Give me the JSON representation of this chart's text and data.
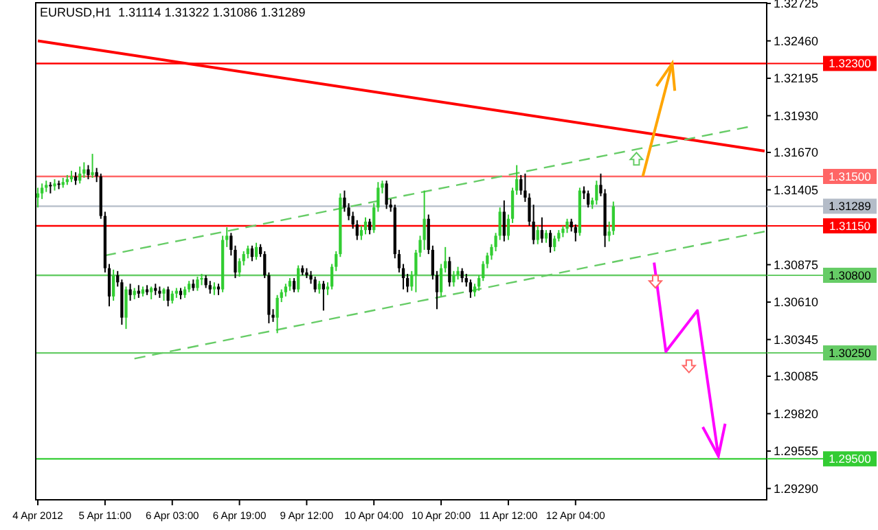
{
  "chart_data": {
    "type": "candlestick",
    "title": "EURUSD,H1  1.31114 1.31322 1.31086 1.31289",
    "ylim": [
      1.2921,
      1.3273
    ],
    "categories": [
      "4 Apr 2012",
      null,
      null,
      null,
      null,
      null,
      null,
      null,
      null,
      null,
      null,
      null,
      null,
      null,
      null,
      null,
      "5 Apr 11:00",
      null,
      null,
      null,
      null,
      null,
      null,
      null,
      null,
      null,
      null,
      null,
      null,
      null,
      null,
      null,
      "6 Apr 03:00",
      null,
      null,
      null,
      null,
      null,
      null,
      null,
      null,
      null,
      null,
      null,
      null,
      null,
      null,
      null,
      "6 Apr 19:00",
      null,
      null,
      null,
      null,
      null,
      null,
      null,
      null,
      null,
      null,
      null,
      null,
      null,
      null,
      null,
      "9 Apr 12:00",
      null,
      null,
      null,
      null,
      null,
      null,
      null,
      null,
      null,
      null,
      null,
      null,
      null,
      null,
      null,
      "10 Apr 04:00",
      null,
      null,
      null,
      null,
      null,
      null,
      null,
      null,
      null,
      null,
      null,
      null,
      null,
      null,
      null,
      "10 Apr 20:00",
      null,
      null,
      null,
      null,
      null,
      null,
      null,
      null,
      null,
      null,
      null,
      null,
      null,
      null,
      null,
      "11 Apr 12:00",
      null,
      null,
      null,
      null,
      null,
      null,
      null,
      null,
      null,
      null,
      null,
      null,
      null,
      null,
      null,
      "12 Apr 04:00",
      null,
      null,
      null,
      null,
      null,
      null,
      null,
      null,
      null,
      null,
      null,
      null,
      null,
      null,
      null,
      null,
      null,
      null,
      null,
      null,
      null,
      null,
      null,
      null,
      null,
      null,
      null,
      null,
      null,
      null,
      null,
      null,
      null,
      null,
      null,
      null,
      null,
      null,
      null,
      null,
      null,
      null,
      null,
      null,
      null
    ],
    "yticks": [
      {
        "value": 1.32725,
        "label": "1.32725"
      },
      {
        "value": 1.3246,
        "label": "1.32460"
      },
      {
        "value": 1.32195,
        "label": "1.32195"
      },
      {
        "value": 1.3193,
        "label": "1.31930"
      },
      {
        "value": 1.3167,
        "label": "1.31670"
      },
      {
        "value": 1.31405,
        "label": "1.31405"
      },
      {
        "value": 1.30875,
        "label": "1.30875"
      },
      {
        "value": 1.3061,
        "label": "1.30610"
      },
      {
        "value": 1.30345,
        "label": "1.30345"
      },
      {
        "value": 1.30085,
        "label": "1.30085"
      },
      {
        "value": 1.2982,
        "label": "1.29820"
      },
      {
        "value": 1.29555,
        "label": "1.29555"
      },
      {
        "value": 1.2929,
        "label": "1.29290"
      }
    ],
    "ohlc": [
      [
        1.3135,
        1.3142,
        1.3128,
        1.3138
      ],
      [
        1.3138,
        1.3145,
        1.3134,
        1.3142
      ],
      [
        1.3142,
        1.3147,
        1.3139,
        1.3144
      ],
      [
        1.3144,
        1.3146,
        1.3138,
        1.3143
      ],
      [
        1.3143,
        1.3148,
        1.314,
        1.3145
      ],
      [
        1.3145,
        1.3147,
        1.3141,
        1.3144
      ],
      [
        1.3144,
        1.3149,
        1.3142,
        1.3146
      ],
      [
        1.3146,
        1.3151,
        1.3144,
        1.3148
      ],
      [
        1.3148,
        1.3154,
        1.3146,
        1.315
      ],
      [
        1.315,
        1.3153,
        1.3144,
        1.3147
      ],
      [
        1.3147,
        1.3157,
        1.3145,
        1.3152
      ],
      [
        1.3152,
        1.316,
        1.3149,
        1.3155
      ],
      [
        1.3155,
        1.3158,
        1.3148,
        1.3151
      ],
      [
        1.3151,
        1.3166,
        1.3149,
        1.3153
      ],
      [
        1.3153,
        1.3156,
        1.3146,
        1.315
      ],
      [
        1.315,
        1.3152,
        1.312,
        1.3122
      ],
      [
        1.3122,
        1.3125,
        1.3082,
        1.3085
      ],
      [
        1.3085,
        1.3088,
        1.3058,
        1.3065
      ],
      [
        1.3065,
        1.3084,
        1.3062,
        1.308
      ],
      [
        1.308,
        1.3083,
        1.3072,
        1.3075
      ],
      [
        1.3075,
        1.3077,
        1.3045,
        1.305
      ],
      [
        1.305,
        1.3072,
        1.3042,
        1.307
      ],
      [
        1.307,
        1.3074,
        1.3062,
        1.3066
      ],
      [
        1.3066,
        1.3071,
        1.3063,
        1.3069
      ],
      [
        1.3069,
        1.3073,
        1.3064,
        1.3067
      ],
      [
        1.3067,
        1.3072,
        1.3065,
        1.307
      ],
      [
        1.307,
        1.3073,
        1.3066,
        1.3068
      ],
      [
        1.3068,
        1.3072,
        1.3063,
        1.3071
      ],
      [
        1.3071,
        1.3074,
        1.3066,
        1.3069
      ],
      [
        1.3069,
        1.3072,
        1.3064,
        1.3067
      ],
      [
        1.3067,
        1.3071,
        1.3062,
        1.307
      ],
      [
        1.307,
        1.3072,
        1.3058,
        1.3062
      ],
      [
        1.3062,
        1.3069,
        1.306,
        1.3067
      ],
      [
        1.3067,
        1.3071,
        1.3064,
        1.3069
      ],
      [
        1.3069,
        1.3071,
        1.3063,
        1.3066
      ],
      [
        1.3066,
        1.3072,
        1.3064,
        1.307
      ],
      [
        1.307,
        1.3076,
        1.3068,
        1.3074
      ],
      [
        1.3074,
        1.3077,
        1.3069,
        1.3071
      ],
      [
        1.3071,
        1.3079,
        1.3069,
        1.3077
      ],
      [
        1.3077,
        1.3081,
        1.3073,
        1.3078
      ],
      [
        1.3078,
        1.308,
        1.3071,
        1.3073
      ],
      [
        1.3073,
        1.3076,
        1.3067,
        1.307
      ],
      [
        1.307,
        1.3075,
        1.3066,
        1.3072
      ],
      [
        1.3072,
        1.3074,
        1.3066,
        1.307
      ],
      [
        1.307,
        1.3108,
        1.3068,
        1.3105
      ],
      [
        1.3105,
        1.3114,
        1.31,
        1.3108
      ],
      [
        1.3108,
        1.311,
        1.3094,
        1.3098
      ],
      [
        1.3098,
        1.3101,
        1.3078,
        1.3082
      ],
      [
        1.3082,
        1.3092,
        1.3079,
        1.309
      ],
      [
        1.309,
        1.3097,
        1.3087,
        1.3095
      ],
      [
        1.3095,
        1.3101,
        1.3092,
        1.3099
      ],
      [
        1.3099,
        1.3101,
        1.309,
        1.3093
      ],
      [
        1.3093,
        1.3103,
        1.3091,
        1.31
      ],
      [
        1.31,
        1.3102,
        1.3093,
        1.3095
      ],
      [
        1.3095,
        1.3097,
        1.3078,
        1.308
      ],
      [
        1.308,
        1.3082,
        1.3046,
        1.3052
      ],
      [
        1.3052,
        1.3056,
        1.3047,
        1.305
      ],
      [
        1.305,
        1.3066,
        1.3039,
        1.3064
      ],
      [
        1.3064,
        1.307,
        1.3061,
        1.3068
      ],
      [
        1.3068,
        1.3074,
        1.3065,
        1.3072
      ],
      [
        1.3072,
        1.3078,
        1.3069,
        1.3076
      ],
      [
        1.3076,
        1.3078,
        1.3068,
        1.307
      ],
      [
        1.307,
        1.3087,
        1.3068,
        1.3085
      ],
      [
        1.3085,
        1.3087,
        1.308,
        1.3082
      ],
      [
        1.3082,
        1.3085,
        1.3078,
        1.308
      ],
      [
        1.308,
        1.3083,
        1.3074,
        1.3077
      ],
      [
        1.3077,
        1.3079,
        1.3068,
        1.307
      ],
      [
        1.307,
        1.3076,
        1.3067,
        1.3074
      ],
      [
        1.3074,
        1.3076,
        1.3055,
        1.307
      ],
      [
        1.307,
        1.3075,
        1.3066,
        1.3072
      ],
      [
        1.3072,
        1.3088,
        1.307,
        1.3086
      ],
      [
        1.3086,
        1.3097,
        1.3083,
        1.3095
      ],
      [
        1.3095,
        1.3138,
        1.3093,
        1.3135
      ],
      [
        1.3135,
        1.314,
        1.3125,
        1.3128
      ],
      [
        1.3128,
        1.3131,
        1.3119,
        1.3122
      ],
      [
        1.3122,
        1.3125,
        1.3113,
        1.3116
      ],
      [
        1.3116,
        1.3119,
        1.3105,
        1.3108
      ],
      [
        1.3108,
        1.3115,
        1.3105,
        1.3112
      ],
      [
        1.3112,
        1.3121,
        1.3109,
        1.3118
      ],
      [
        1.3118,
        1.312,
        1.3109,
        1.3112
      ],
      [
        1.3112,
        1.3131,
        1.311,
        1.3128
      ],
      [
        1.3128,
        1.3146,
        1.3125,
        1.3142
      ],
      [
        1.3142,
        1.3147,
        1.3138,
        1.3145
      ],
      [
        1.3145,
        1.3147,
        1.3127,
        1.313
      ],
      [
        1.313,
        1.3134,
        1.3125,
        1.3128
      ],
      [
        1.3128,
        1.313,
        1.3092,
        1.3095
      ],
      [
        1.3095,
        1.3098,
        1.3082,
        1.3085
      ],
      [
        1.3085,
        1.3088,
        1.307,
        1.3078
      ],
      [
        1.3078,
        1.3081,
        1.3068,
        1.3072
      ],
      [
        1.3072,
        1.3083,
        1.3069,
        1.308
      ],
      [
        1.308,
        1.3098,
        1.3068,
        1.3096
      ],
      [
        1.3096,
        1.3108,
        1.3093,
        1.3105
      ],
      [
        1.3105,
        1.314,
        1.3098,
        1.312
      ],
      [
        1.312,
        1.3123,
        1.3095,
        1.3098
      ],
      [
        1.3098,
        1.3101,
        1.3077,
        1.308
      ],
      [
        1.308,
        1.3083,
        1.3056,
        1.3068
      ],
      [
        1.3068,
        1.3088,
        1.3065,
        1.3085
      ],
      [
        1.3085,
        1.31,
        1.3082,
        1.309
      ],
      [
        1.309,
        1.3093,
        1.3072,
        1.3075
      ],
      [
        1.3075,
        1.3083,
        1.3072,
        1.308
      ],
      [
        1.308,
        1.3086,
        1.3077,
        1.3083
      ],
      [
        1.3083,
        1.3085,
        1.3075,
        1.3078
      ],
      [
        1.3078,
        1.3081,
        1.3072,
        1.3075
      ],
      [
        1.3075,
        1.3077,
        1.3064,
        1.3068
      ],
      [
        1.3068,
        1.3074,
        1.3065,
        1.3072
      ],
      [
        1.3072,
        1.308,
        1.3069,
        1.3078
      ],
      [
        1.3078,
        1.309,
        1.3076,
        1.3088
      ],
      [
        1.3088,
        1.3096,
        1.3085,
        1.3094
      ],
      [
        1.3094,
        1.3102,
        1.3091,
        1.31
      ],
      [
        1.31,
        1.311,
        1.3097,
        1.3108
      ],
      [
        1.3108,
        1.3128,
        1.3105,
        1.3125
      ],
      [
        1.3125,
        1.3133,
        1.3104,
        1.3108
      ],
      [
        1.3108,
        1.3123,
        1.3105,
        1.312
      ],
      [
        1.312,
        1.3142,
        1.3117,
        1.314
      ],
      [
        1.314,
        1.3158,
        1.3137,
        1.3148
      ],
      [
        1.3148,
        1.3151,
        1.3137,
        1.314
      ],
      [
        1.314,
        1.3152,
        1.3132,
        1.3135
      ],
      [
        1.3135,
        1.3138,
        1.3115,
        1.3118
      ],
      [
        1.3118,
        1.313,
        1.3102,
        1.3105
      ],
      [
        1.3105,
        1.3115,
        1.3102,
        1.3112
      ],
      [
        1.3112,
        1.3121,
        1.3103,
        1.3106
      ],
      [
        1.3106,
        1.3112,
        1.3103,
        1.311
      ],
      [
        1.311,
        1.3112,
        1.3096,
        1.31
      ],
      [
        1.31,
        1.3108,
        1.3097,
        1.3106
      ],
      [
        1.3106,
        1.3112,
        1.3104,
        1.311
      ],
      [
        1.311,
        1.3115,
        1.3107,
        1.3113
      ],
      [
        1.3113,
        1.312,
        1.311,
        1.3118
      ],
      [
        1.3118,
        1.312,
        1.3111,
        1.3114
      ],
      [
        1.3114,
        1.3116,
        1.3104,
        1.311
      ],
      [
        1.311,
        1.3142,
        1.3108,
        1.314
      ],
      [
        1.314,
        1.3143,
        1.3134,
        1.3138
      ],
      [
        1.3138,
        1.314,
        1.3128,
        1.313
      ],
      [
        1.313,
        1.3135,
        1.3127,
        1.3133
      ],
      [
        1.3133,
        1.3147,
        1.313,
        1.3144
      ],
      [
        1.3144,
        1.3152,
        1.3136,
        1.3138
      ],
      [
        1.3138,
        1.3141,
        1.31,
        1.3108
      ],
      [
        1.3108,
        1.3118,
        1.3104,
        1.3111
      ],
      [
        1.31114,
        1.31322,
        1.31086,
        1.31289
      ],
      null,
      null,
      null,
      null,
      null,
      null,
      null,
      null,
      null,
      null,
      null,
      null,
      null,
      null,
      null,
      null,
      null,
      null,
      null,
      null,
      null,
      null,
      null,
      null,
      null,
      null,
      null,
      null,
      null,
      null,
      null,
      null,
      null,
      null,
      null,
      null
    ],
    "colors": [
      "#32cd32",
      "#32cd32",
      "#32cd32",
      "#000000",
      "#32cd32",
      "#000000",
      "#32cd32",
      "#32cd32",
      "#32cd32",
      "#000000",
      "#32cd32",
      "#32cd32",
      "#000000",
      "#32cd32",
      "#000000",
      "#000000",
      "#000000",
      "#000000",
      "#32cd32",
      "#000000",
      "#000000",
      "#32cd32",
      "#000000",
      "#32cd32",
      "#000000",
      "#32cd32",
      "#000000",
      "#32cd32",
      "#000000",
      "#000000",
      "#32cd32",
      "#000000",
      "#32cd32",
      "#32cd32",
      "#000000",
      "#32cd32",
      "#32cd32",
      "#000000",
      "#32cd32",
      "#32cd32",
      "#000000",
      "#000000",
      "#32cd32",
      "#000000",
      "#32cd32",
      "#32cd32",
      "#000000",
      "#000000",
      "#32cd32",
      "#32cd32",
      "#32cd32",
      "#000000",
      "#32cd32",
      "#000000",
      "#000000",
      "#000000",
      "#000000",
      "#32cd32",
      "#32cd32",
      "#32cd32",
      "#32cd32",
      "#000000",
      "#32cd32",
      "#000000",
      "#000000",
      "#000000",
      "#000000",
      "#32cd32",
      "#000000",
      "#32cd32",
      "#32cd32",
      "#32cd32",
      "#32cd32",
      "#000000",
      "#000000",
      "#000000",
      "#000000",
      "#32cd32",
      "#32cd32",
      "#000000",
      "#32cd32",
      "#32cd32",
      "#32cd32",
      "#000000",
      "#000000",
      "#000000",
      "#000000",
      "#000000",
      "#000000",
      "#32cd32",
      "#32cd32",
      "#32cd32",
      "#32cd32",
      "#000000",
      "#000000",
      "#000000",
      "#32cd32",
      "#32cd32",
      "#000000",
      "#32cd32",
      "#32cd32",
      "#000000",
      "#000000",
      "#000000",
      "#32cd32",
      "#32cd32",
      "#32cd32",
      "#32cd32",
      "#32cd32",
      "#32cd32",
      "#32cd32",
      "#000000",
      "#32cd32",
      "#32cd32",
      "#32cd32",
      "#000000",
      "#000000",
      "#000000",
      "#000000",
      "#32cd32",
      "#000000",
      "#32cd32",
      "#000000",
      "#32cd32",
      "#32cd32",
      "#32cd32",
      "#32cd32",
      "#000000",
      "#000000",
      "#32cd32",
      "#000000",
      "#000000",
      "#32cd32",
      "#32cd32",
      "#000000",
      "#000000",
      "#32cd32",
      "#32cd32",
      null,
      null,
      null,
      null,
      null,
      null,
      null,
      null,
      null,
      null,
      null,
      null,
      null,
      null,
      null,
      null,
      null,
      null,
      null,
      null,
      null,
      null,
      null,
      null,
      null,
      null,
      null,
      null,
      null,
      null,
      null,
      null,
      null,
      null,
      null,
      null
    ],
    "series": [
      {
        "type": "line",
        "values": [
          1.3246,
          null,
          null,
          null,
          null,
          null,
          null,
          null,
          null,
          null,
          null,
          null,
          null,
          null,
          null,
          null,
          null,
          null,
          null,
          null,
          null,
          null,
          null,
          null,
          null,
          null,
          null,
          null,
          null,
          null,
          null,
          null,
          null,
          null,
          null,
          null,
          null,
          null,
          null,
          null,
          null,
          null,
          null,
          null,
          null,
          null,
          null,
          null,
          null,
          null,
          null,
          null,
          null,
          null,
          null,
          null,
          null,
          null,
          null,
          null,
          null,
          null,
          null,
          null,
          null,
          null,
          null,
          null,
          null,
          null,
          null,
          null,
          null,
          null,
          null,
          null,
          null,
          null,
          null,
          null,
          null,
          null,
          null,
          null,
          null,
          null,
          null,
          null,
          null,
          null,
          null,
          null,
          null,
          null,
          null,
          null,
          null,
          null,
          null,
          null,
          null,
          null,
          null,
          null,
          null,
          null,
          null,
          null,
          null,
          null,
          null,
          null,
          null,
          null,
          null,
          null,
          null,
          null,
          null,
          null,
          null,
          null,
          null,
          null,
          null,
          null,
          null,
          null,
          null,
          null,
          null,
          null,
          null,
          null,
          null,
          null,
          null,
          null,
          null,
          null,
          null,
          null,
          null,
          null,
          null,
          null,
          null,
          null,
          null,
          null,
          null,
          null,
          null,
          null,
          null,
          null,
          null,
          null,
          null,
          null,
          null,
          null,
          null,
          null,
          null,
          null,
          null,
          null,
          null,
          null,
          null,
          null,
          null,
          1.3168
        ],
        "color": "#ff0000",
        "line_style": "solid"
      },
      {
        "type": "line",
        "values": [
          null,
          null,
          null,
          null,
          null,
          null,
          null,
          null,
          null,
          null,
          null,
          null,
          null,
          null,
          null,
          null,
          1.3094,
          null,
          null,
          null,
          null,
          null,
          null,
          null,
          null,
          null,
          null,
          null,
          null,
          null,
          null,
          null,
          null,
          null,
          null,
          null,
          null,
          null,
          null,
          null,
          null,
          null,
          null,
          null,
          null,
          null,
          null,
          null,
          null,
          null,
          null,
          null,
          null,
          null,
          null,
          null,
          null,
          null,
          null,
          null,
          null,
          null,
          null,
          null,
          null,
          null,
          null,
          null,
          null,
          null,
          null,
          null,
          null,
          null,
          null,
          null,
          null,
          null,
          null,
          null,
          null,
          null,
          null,
          null,
          null,
          null,
          null,
          null,
          null,
          null,
          null,
          null,
          null,
          null,
          null,
          null,
          null,
          null,
          null,
          null,
          null,
          null,
          null,
          null,
          null,
          null,
          null,
          null,
          null,
          null,
          null,
          null,
          null,
          null,
          null,
          null,
          null,
          null,
          null,
          null,
          null,
          null,
          null,
          null,
          null,
          null,
          null,
          null,
          null,
          null,
          null,
          null,
          null,
          null,
          null,
          null,
          null,
          null,
          null,
          null,
          null,
          null,
          null,
          null,
          null,
          null,
          null,
          null,
          null,
          null,
          null,
          null,
          null,
          null,
          null,
          null,
          null,
          null,
          null,
          null,
          null,
          null,
          null,
          null,
          null,
          null,
          null,
          null,
          null,
          1.3185,
          null,
          null,
          null,
          null
        ],
        "color": "#66cc66",
        "line_style": "dashed"
      },
      {
        "type": "line",
        "values": [
          null,
          null,
          null,
          null,
          null,
          null,
          null,
          null,
          null,
          null,
          null,
          null,
          null,
          null,
          null,
          null,
          null,
          null,
          null,
          null,
          null,
          null,
          null,
          1.3021,
          null,
          null,
          null,
          null,
          null,
          null,
          null,
          null,
          null,
          null,
          null,
          null,
          null,
          null,
          null,
          null,
          null,
          null,
          null,
          null,
          null,
          null,
          null,
          null,
          null,
          null,
          null,
          null,
          null,
          null,
          null,
          null,
          null,
          null,
          null,
          null,
          null,
          null,
          null,
          null,
          null,
          null,
          null,
          null,
          null,
          null,
          null,
          null,
          null,
          null,
          null,
          null,
          null,
          null,
          null,
          null,
          null,
          null,
          null,
          null,
          null,
          null,
          null,
          null,
          null,
          null,
          null,
          null,
          null,
          null,
          null,
          null,
          null,
          null,
          null,
          null,
          null,
          null,
          null,
          null,
          null,
          null,
          null,
          null,
          null,
          null,
          null,
          null,
          null,
          null,
          null,
          null,
          null,
          null,
          null,
          null,
          null,
          null,
          null,
          null,
          null,
          null,
          null,
          null,
          null,
          null,
          null,
          null,
          null,
          null,
          null,
          null,
          null,
          null,
          null,
          null,
          null,
          null,
          null,
          null,
          null,
          null,
          null,
          null,
          null,
          null,
          null,
          null,
          null,
          null,
          null,
          null,
          null,
          null,
          null,
          null,
          null,
          null,
          null,
          null,
          null,
          null,
          null,
          null,
          null,
          null,
          null,
          null,
          null,
          1.3111
        ],
        "color": "#66cc66",
        "line_style": "dashed"
      }
    ],
    "ref_lines": [
      {
        "axis": "y",
        "value": 1.323,
        "label": "1.32300",
        "color": "#ff0000"
      },
      {
        "axis": "y",
        "value": 1.315,
        "label": "1.31500",
        "color": "#ff6666"
      },
      {
        "axis": "y",
        "value": 1.31289,
        "label": "1.31289",
        "color": "#b4bcc8"
      },
      {
        "axis": "y",
        "value": 1.3115,
        "label": "1.31150",
        "color": "#ff0000"
      },
      {
        "axis": "y",
        "value": 1.308,
        "label": "1.30800",
        "color": "#66cc66"
      },
      {
        "axis": "y",
        "value": 1.3025,
        "label": "1.30250",
        "color": "#66cc66"
      },
      {
        "axis": "y",
        "value": 1.295,
        "label": "1.29500",
        "color": "#33cc33"
      }
    ]
  }
}
